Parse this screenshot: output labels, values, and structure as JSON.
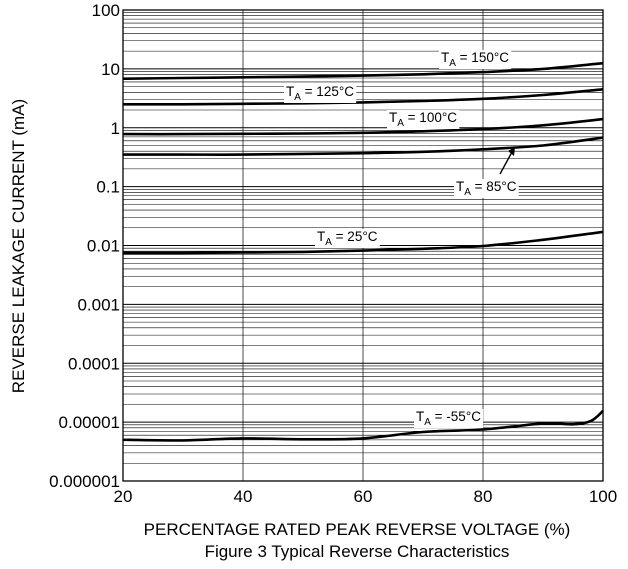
{
  "chart_data": {
    "type": "line",
    "title": "",
    "caption": "Figure 3 Typical Reverse Characteristics",
    "xlabel": "PERCENTAGE RATED PEAK REVERSE VOLTAGE (%)",
    "ylabel": "REVERSE LEAKAGE CURRENT (mA)",
    "xlim": [
      20,
      100
    ],
    "ylim": [
      1e-06,
      100
    ],
    "y_scale": "log",
    "grid": true,
    "legend": "none (inline curve labels)",
    "x_ticks": [
      "20",
      "40",
      "60",
      "80",
      "100"
    ],
    "y_ticks": [
      "0.000001",
      "0.00001",
      "0.0001",
      "0.001",
      "0.01",
      "0.1",
      "1",
      "10",
      "100"
    ],
    "series": [
      {
        "name": "T_A = 150°C",
        "label_main": "T",
        "label_sub": "A",
        "label_rest": " = 150°C",
        "x": [
          20,
          30,
          40,
          50,
          60,
          70,
          80,
          90,
          100
        ],
        "y": [
          6.8,
          7.0,
          7.2,
          7.4,
          7.7,
          8.1,
          8.8,
          10.0,
          12.5
        ]
      },
      {
        "name": "T_A = 125°C",
        "label_main": "T",
        "label_sub": "A",
        "label_rest": " = 125°C",
        "x": [
          20,
          30,
          40,
          50,
          60,
          70,
          80,
          90,
          100
        ],
        "y": [
          2.5,
          2.5,
          2.55,
          2.6,
          2.7,
          2.85,
          3.1,
          3.6,
          4.5
        ]
      },
      {
        "name": "T_A = 100°C",
        "label_main": "T",
        "label_sub": "A",
        "label_rest": " = 100°C",
        "x": [
          20,
          30,
          40,
          50,
          60,
          70,
          80,
          90,
          100
        ],
        "y": [
          0.78,
          0.78,
          0.79,
          0.8,
          0.82,
          0.87,
          0.95,
          1.1,
          1.4
        ]
      },
      {
        "name": "T_A = 85°C",
        "label_main": "T",
        "label_sub": "A",
        "label_rest": " = 85°C",
        "x": [
          20,
          30,
          40,
          50,
          60,
          70,
          80,
          90,
          100
        ],
        "y": [
          0.35,
          0.35,
          0.35,
          0.36,
          0.37,
          0.39,
          0.43,
          0.5,
          0.68
        ]
      },
      {
        "name": "T_A = 25°C",
        "label_main": "T",
        "label_sub": "A",
        "label_rest": " = 25°C",
        "x": [
          20,
          30,
          40,
          50,
          60,
          70,
          80,
          90,
          100
        ],
        "y": [
          0.0075,
          0.0075,
          0.0076,
          0.0078,
          0.0082,
          0.0088,
          0.0098,
          0.0125,
          0.017
        ]
      },
      {
        "name": "T_A = -55°C",
        "label_main": "T",
        "label_sub": "A",
        "label_rest": " = -55°C",
        "x": [
          20,
          30,
          40,
          50,
          60,
          70,
          80,
          90,
          95,
          98,
          100
        ],
        "y": [
          5e-06,
          4.9e-06,
          5.3e-06,
          5.1e-06,
          5.3e-06,
          6.8e-06,
          7.5e-06,
          9.5e-06,
          9.2e-06,
          1.05e-05,
          1.55e-05
        ]
      }
    ]
  }
}
